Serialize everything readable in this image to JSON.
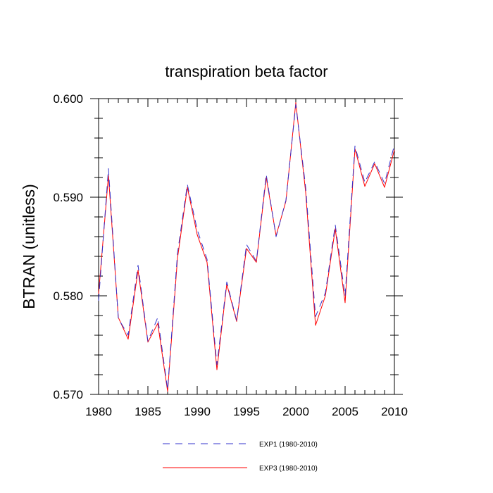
{
  "chart_data": {
    "type": "line",
    "title": "transpiration beta factor",
    "xlabel": "",
    "ylabel": "BTRAN  (unitless)",
    "xlim": [
      1980,
      2010
    ],
    "ylim": [
      0.57,
      0.6
    ],
    "x_ticks": [
      1980,
      1985,
      1990,
      1995,
      2000,
      2005,
      2010
    ],
    "x_tick_labels": [
      "1980",
      "1985",
      "1990",
      "1995",
      "2000",
      "2005",
      "2010"
    ],
    "y_ticks": [
      0.57,
      0.58,
      0.59,
      0.6
    ],
    "y_tick_labels": [
      "0.570",
      "0.580",
      "0.590",
      "0.600"
    ],
    "grid": false,
    "legend_position": "bottom-center",
    "x": [
      1980,
      1981,
      1982,
      1983,
      1984,
      1985,
      1986,
      1987,
      1988,
      1989,
      1990,
      1991,
      1992,
      1993,
      1994,
      1995,
      1996,
      1997,
      1998,
      1999,
      2000,
      2001,
      2002,
      2003,
      2004,
      2005,
      2006,
      2007,
      2008,
      2009,
      2010
    ],
    "series": [
      {
        "name": "EXP1 (1980-2010)",
        "color": "#3333cc",
        "dash": "dashed",
        "values": [
          0.5795,
          0.5929,
          0.5777,
          0.576,
          0.5831,
          0.5754,
          0.5778,
          0.5705,
          0.5843,
          0.5913,
          0.5867,
          0.5837,
          0.573,
          0.5814,
          0.5775,
          0.5852,
          0.5835,
          0.5923,
          0.586,
          0.5897,
          0.5994,
          0.591,
          0.5779,
          0.5803,
          0.5872,
          0.58,
          0.5952,
          0.5915,
          0.5936,
          0.5914,
          0.5953
        ]
      },
      {
        "name": "EXP3 (1980-2010)",
        "color": "#ff0000",
        "dash": "solid",
        "values": [
          0.5802,
          0.5922,
          0.5778,
          0.5756,
          0.5826,
          0.5753,
          0.5772,
          0.5703,
          0.5838,
          0.591,
          0.5862,
          0.5834,
          0.5725,
          0.5812,
          0.5774,
          0.5848,
          0.5834,
          0.592,
          0.5861,
          0.5896,
          0.5996,
          0.5905,
          0.577,
          0.58,
          0.5868,
          0.5793,
          0.5949,
          0.5911,
          0.5934,
          0.591,
          0.5948
        ]
      }
    ]
  }
}
